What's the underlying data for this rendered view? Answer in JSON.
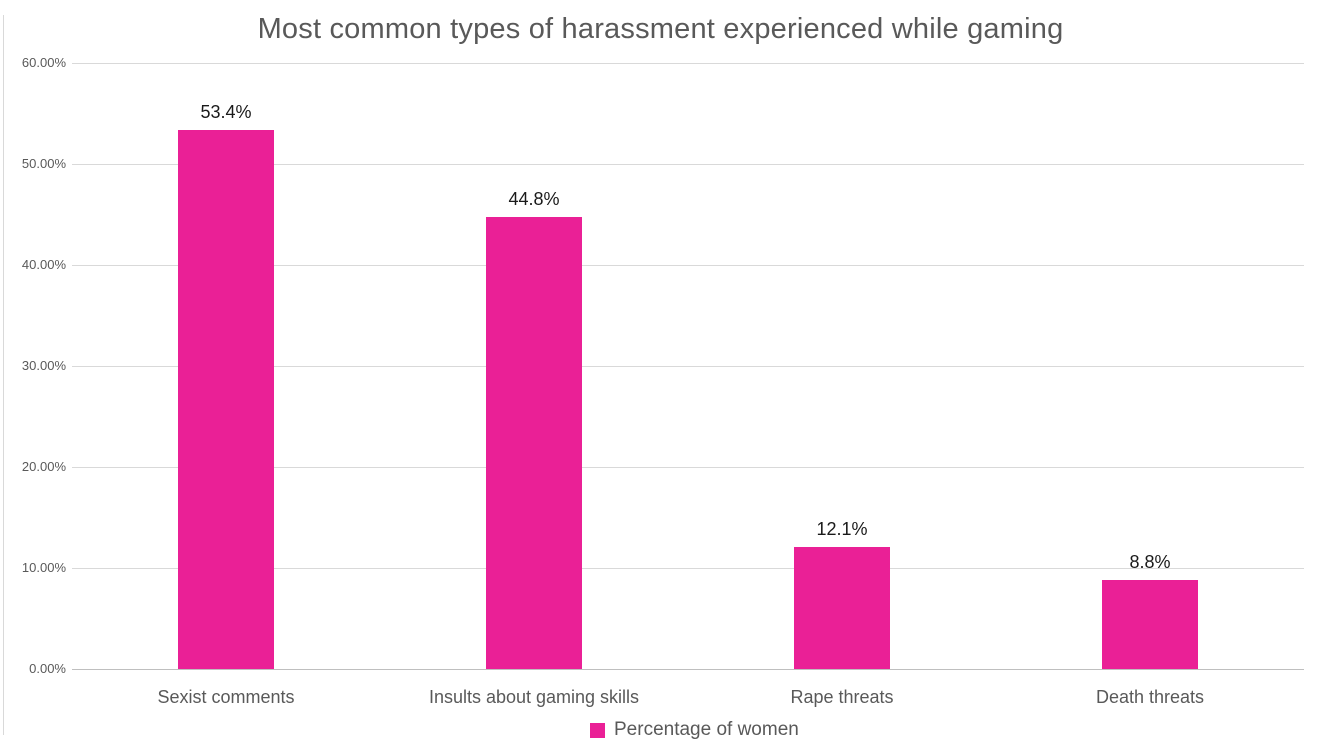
{
  "chart_data": {
    "type": "bar",
    "title": "Most common types of harassment experienced while gaming",
    "categories": [
      "Sexist comments",
      "Insults about gaming skills",
      "Rape threats",
      "Death threats"
    ],
    "series": [
      {
        "name": "Percentage of women",
        "values": [
          53.4,
          44.8,
          12.1,
          8.8
        ]
      }
    ],
    "data_labels": [
      "53.4%",
      "44.8%",
      "12.1%",
      "8.8%"
    ],
    "xlabel": "",
    "ylabel": "",
    "ylim": [
      0,
      60
    ],
    "y_tick_values": [
      0,
      10,
      20,
      30,
      40,
      50,
      60
    ],
    "y_tick_labels": [
      "0.00%",
      "10.00%",
      "20.00%",
      "30.00%",
      "40.00%",
      "50.00%",
      "60.00%"
    ],
    "grid": true,
    "legend_position": "bottom"
  },
  "legend": {
    "label": "Percentage of women"
  },
  "colors": {
    "bar": "#ea2096",
    "title_text": "#595959",
    "axis_text": "#595959",
    "data_label_text": "#1a1a1a",
    "gridline": "#d9d9d9",
    "axis_line": "#bfbfbf",
    "chart_border": "#d9d9d9",
    "background": "#ffffff"
  }
}
